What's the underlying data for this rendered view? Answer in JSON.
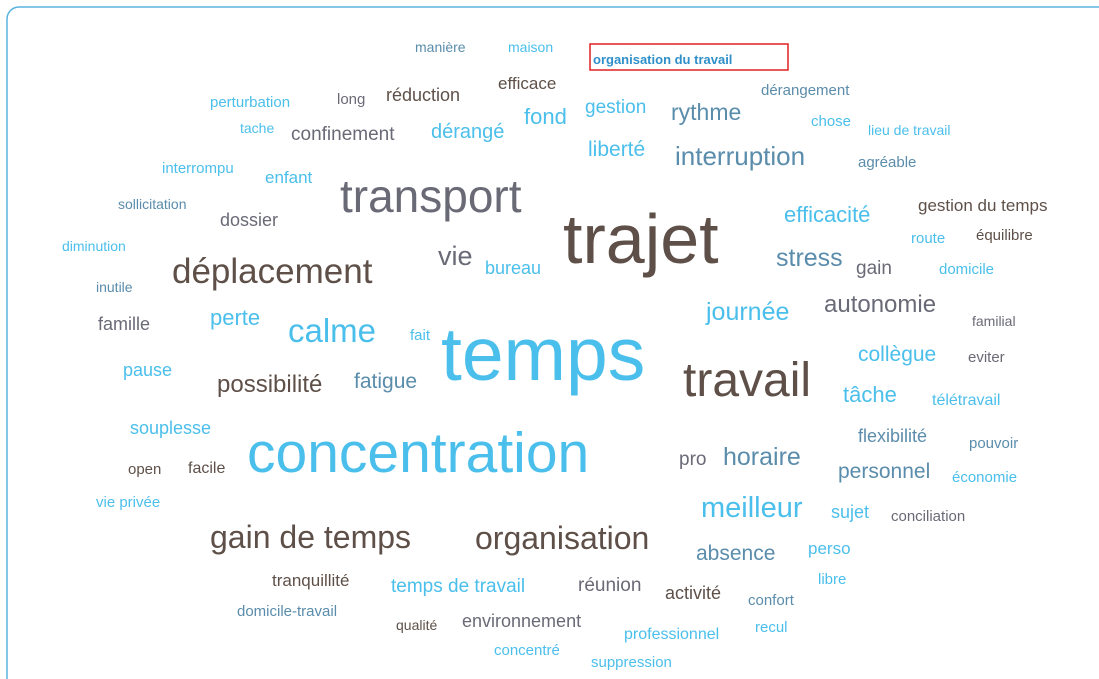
{
  "words": [
    "manière",
    "maison",
    "organisation du travail",
    "efficace",
    "perturbation",
    "long",
    "réduction",
    "dérangement",
    "gestion",
    "rythme",
    "fond",
    "chose",
    "lieu de travail",
    "tache",
    "confinement",
    "dérangé",
    "liberté",
    "interruption",
    "agréable",
    "interrompu",
    "enfant",
    "transport",
    "sollicitation",
    "dossier",
    "trajet",
    "efficacité",
    "gestion du temps",
    "route",
    "équilibre",
    "diminution",
    "déplacement",
    "vie",
    "bureau",
    "stress",
    "gain",
    "domicile",
    "inutile",
    "famille",
    "perte",
    "calme",
    "fait",
    "temps",
    "journée",
    "autonomie",
    "familial",
    "collègue",
    "eviter",
    "pause",
    "possibilité",
    "fatigue",
    "travail",
    "tâche",
    "télétravail",
    "souplesse",
    "concentration",
    "flexibilité",
    "pouvoir",
    "open",
    "facile",
    "économie",
    "pro",
    "horaire",
    "personnel",
    "vie privée",
    "meilleur",
    "sujet",
    "conciliation",
    "gain de temps",
    "organisation",
    "absence",
    "perso",
    "tranquillité",
    "temps de travail",
    "réunion",
    "activité",
    "libre",
    "confort",
    "domicile-travail",
    "qualité",
    "environnement",
    "professionnel",
    "recul",
    "concentré",
    "suppression"
  ]
}
